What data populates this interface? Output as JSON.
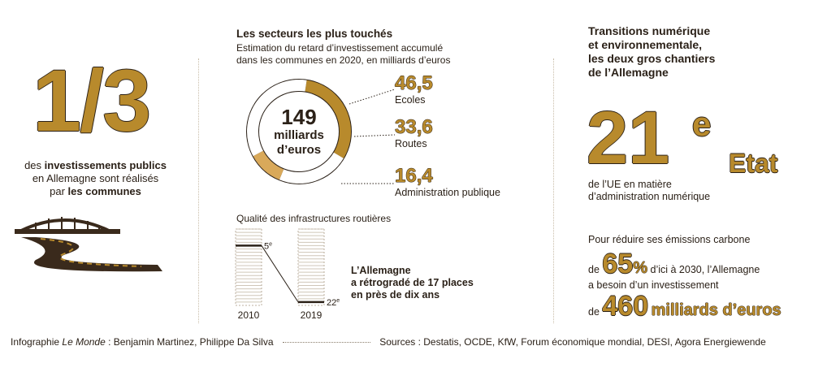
{
  "colors": {
    "accent": "#b88a2c",
    "accent_light": "#d9a95a",
    "dark": "#2b2118"
  },
  "left": {
    "fraction": "1/3",
    "text_pre": "des ",
    "text_bold1": "investissements publics",
    "text_mid": "en Allemagne sont réalisés",
    "text_par": "par ",
    "text_bold2": "les communes",
    "icon": "bridge-road-icon"
  },
  "middle": {
    "title": "Les secteurs les plus touchés",
    "subtitle_line1": "Estimation du retard d’investissement accumulé",
    "subtitle_line2": "dans les communes en 2020, en milliards d’euros",
    "donut_total": "149",
    "donut_unit_line1": "milliards",
    "donut_unit_line2": "d’euros",
    "road_title": "Qualité des infrastructures routières",
    "road_text_line1": "L’Allemagne",
    "road_text_line2": "a rétrogradé de 17 places",
    "road_text_line3": "en près de dix ans"
  },
  "chart_data": [
    {
      "type": "pie",
      "total": 149,
      "categories": [
        "Ecoles",
        "Routes",
        "Administration publique"
      ],
      "values": [
        46.5,
        33.6,
        16.4
      ],
      "value_labels": [
        "46,5",
        "33,6",
        "16,4"
      ]
    },
    {
      "type": "line",
      "title": "Qualité des infrastructures routières",
      "x": [
        "2010",
        "2019"
      ],
      "y": [
        5,
        22
      ],
      "y_labels": [
        "5",
        "22"
      ],
      "y_suffix": "e",
      "annotation": "L’Allemagne a rétrogradé de 17 places en près de dix ans"
    }
  ],
  "right": {
    "title_line1": "Transitions numérique",
    "title_line2": "et environnementale,",
    "title_line3": "les deux gros chantiers",
    "title_line4": "de l’Allemagne",
    "rank_number": "21",
    "rank_sup": "e",
    "rank_word": "Etat",
    "rank_desc_line1": "de l’UE en matière",
    "rank_desc_line2": "d’administration numérique",
    "carbon_intro": "Pour réduire ses émissions carbone",
    "de1": "de",
    "pct_value": "65",
    "pct_sign": "%",
    "pct_tail": "d’ici à 2030, l’Allemagne",
    "need_line": "a besoin d’un investissement",
    "de2": "de",
    "invest_value": "460",
    "invest_unit": "milliards d’euros"
  },
  "footer": {
    "credit_pre": "Infographie ",
    "credit_paper": "Le Monde",
    "credit_post": " : Benjamin Martinez, Philippe Da Silva",
    "sources": "Sources : Destatis, OCDE, KfW, Forum économique mondial, DESI, Agora Energiewende"
  }
}
